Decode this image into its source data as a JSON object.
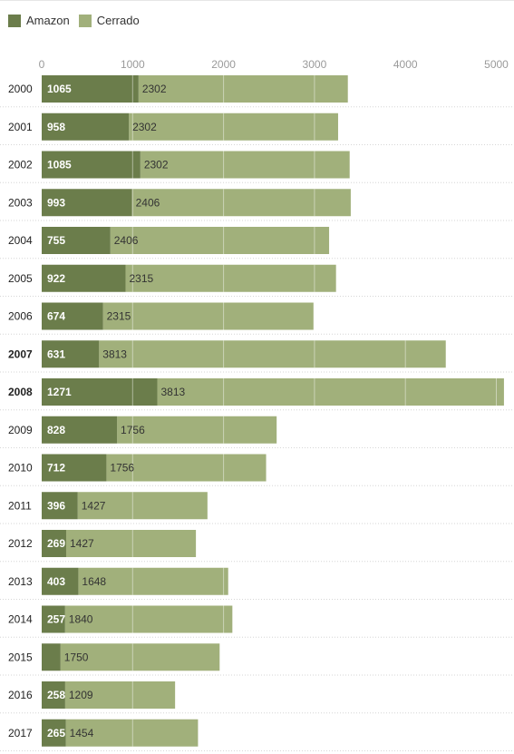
{
  "legend": [
    {
      "label": "Amazon",
      "color": "#6b7d4b"
    },
    {
      "label": "Cerrado",
      "color": "#a1b07b"
    }
  ],
  "chart_data": {
    "type": "bar",
    "orientation": "horizontal",
    "stacked": true,
    "xticks": [
      "0",
      "1000",
      "2000",
      "3000",
      "4000",
      "5000"
    ],
    "xlim": [
      0,
      5100
    ],
    "categories": [
      "2000",
      "2001",
      "2002",
      "2003",
      "2004",
      "2005",
      "2006",
      "2007",
      "2008",
      "2009",
      "2010",
      "2011",
      "2012",
      "2013",
      "2014",
      "2015",
      "2016",
      "2017"
    ],
    "bold_categories": [
      "2007",
      "2008"
    ],
    "series": [
      {
        "name": "Amazon",
        "color": "#6b7d4b",
        "values": [
          1065,
          958,
          1085,
          993,
          755,
          922,
          674,
          631,
          1271,
          828,
          712,
          396,
          269,
          403,
          257,
          207,
          258,
          265
        ],
        "labels": [
          "1065",
          "958",
          "1085",
          "993",
          "755",
          "922",
          "674",
          "631",
          "1271",
          "828",
          "712",
          "396",
          "269",
          "403",
          "257",
          "",
          "258",
          "265"
        ]
      },
      {
        "name": "Cerrado",
        "color": "#a1b07b",
        "values": [
          2302,
          2302,
          2302,
          2406,
          2406,
          2315,
          2315,
          3813,
          3813,
          1756,
          1756,
          1427,
          1427,
          1648,
          1840,
          1750,
          1209,
          1454
        ],
        "labels": [
          "2302",
          "2302",
          "2302",
          "2406",
          "2406",
          "2315",
          "2315",
          "3813",
          "3813",
          "1756",
          "1756",
          "1427",
          "1427",
          "1648",
          "1840",
          "1750",
          "1209",
          "1454"
        ]
      }
    ],
    "grid": true
  }
}
